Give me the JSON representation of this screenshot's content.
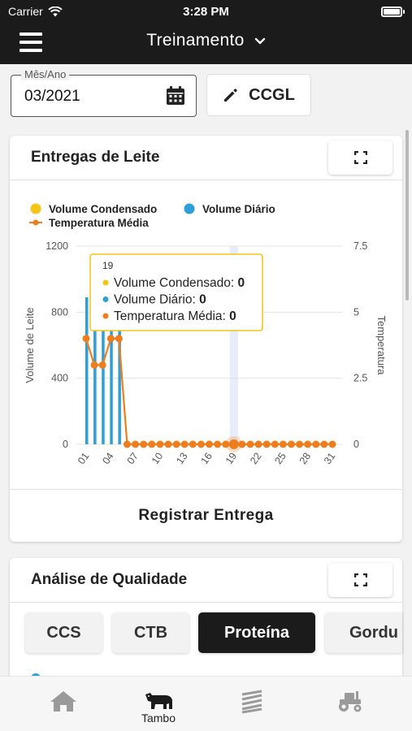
{
  "status_bar": {
    "carrier": "Carrier",
    "time": "3:28 PM"
  },
  "header": {
    "title": "Treinamento"
  },
  "filters": {
    "month_label": "Mês/Ano",
    "month_value": "03/2021",
    "cooperative_label": "CCGL"
  },
  "deliveries_card": {
    "title": "Entregas de Leite",
    "register_label": "Registrar Entrega"
  },
  "tooltip": {
    "day": "19",
    "rows": [
      {
        "label": "Volume Condensado:",
        "value": "0"
      },
      {
        "label": "Volume Diário:",
        "value": "0"
      },
      {
        "label": "Temperatura Média:",
        "value": "0"
      }
    ]
  },
  "chart_data": {
    "type": "bar",
    "legend": [
      "Volume Condensado",
      "Volume Diário",
      "Temperatura Média"
    ],
    "legend_position": "top-left",
    "x": [
      "01",
      "02",
      "03",
      "04",
      "05",
      "06",
      "07",
      "08",
      "09",
      "10",
      "11",
      "12",
      "13",
      "14",
      "15",
      "16",
      "17",
      "18",
      "19",
      "20",
      "21",
      "22",
      "23",
      "24",
      "25",
      "26",
      "27",
      "28",
      "29",
      "30",
      "31"
    ],
    "x_tick_labels": [
      "01",
      "04",
      "07",
      "10",
      "13",
      "16",
      "19",
      "22",
      "25",
      "28",
      "31"
    ],
    "series": [
      {
        "name": "Volume Condensado",
        "kind": "bar",
        "axis": "left",
        "values": [
          0,
          0,
          0,
          0,
          0,
          0,
          0,
          0,
          0,
          0,
          0,
          0,
          0,
          0,
          0,
          0,
          0,
          0,
          0,
          0,
          0,
          0,
          0,
          0,
          0,
          0,
          0,
          0,
          0,
          0,
          0
        ]
      },
      {
        "name": "Volume Diário",
        "kind": "bar",
        "axis": "left",
        "values": [
          890,
          860,
          810,
          860,
          830,
          0,
          0,
          0,
          0,
          0,
          0,
          0,
          0,
          0,
          0,
          0,
          0,
          0,
          0,
          0,
          0,
          0,
          0,
          0,
          0,
          0,
          0,
          0,
          0,
          0,
          0
        ]
      },
      {
        "name": "Temperatura Média",
        "kind": "line",
        "axis": "right",
        "values": [
          4,
          3,
          3,
          4,
          4,
          0,
          0,
          0,
          0,
          0,
          0,
          0,
          0,
          0,
          0,
          0,
          0,
          0,
          0,
          0,
          0,
          0,
          0,
          0,
          0,
          0,
          0,
          0,
          0,
          0,
          0
        ]
      }
    ],
    "ylabel": "Volume de Leite",
    "ylabel_right": "Temperatura",
    "ylim": [
      0,
      1200
    ],
    "ylim_right": [
      0,
      7.5
    ],
    "yticks": [
      0,
      400,
      800,
      1200
    ],
    "yticks_right": [
      0,
      2.5,
      5,
      7.5
    ],
    "highlighted_x": "19",
    "colors": {
      "Volume Condensado": "#f5c518",
      "Volume Diário": "#2e9fd8",
      "Temperatura Média": "#ee7d1d"
    },
    "grid": true
  },
  "quality_card": {
    "title": "Análise de Qualidade",
    "tabs": [
      {
        "label": "CCS",
        "active": false
      },
      {
        "label": "CTB",
        "active": false
      },
      {
        "label": "Proteína",
        "active": true
      },
      {
        "label": "Gordu",
        "active": false
      }
    ]
  },
  "bottom_nav": {
    "items": [
      {
        "icon": "home-icon",
        "label": ""
      },
      {
        "icon": "cow-icon",
        "label": "Tambo"
      },
      {
        "icon": "field-icon",
        "label": ""
      },
      {
        "icon": "tractor-icon",
        "label": ""
      }
    ]
  },
  "colors": {
    "header_bg": "#1b1b1b",
    "active_tab_bg": "#1b1b1b",
    "accent_orange": "#ee7d1d",
    "accent_blue": "#2e9fd8",
    "accent_yellow": "#f5c518"
  }
}
